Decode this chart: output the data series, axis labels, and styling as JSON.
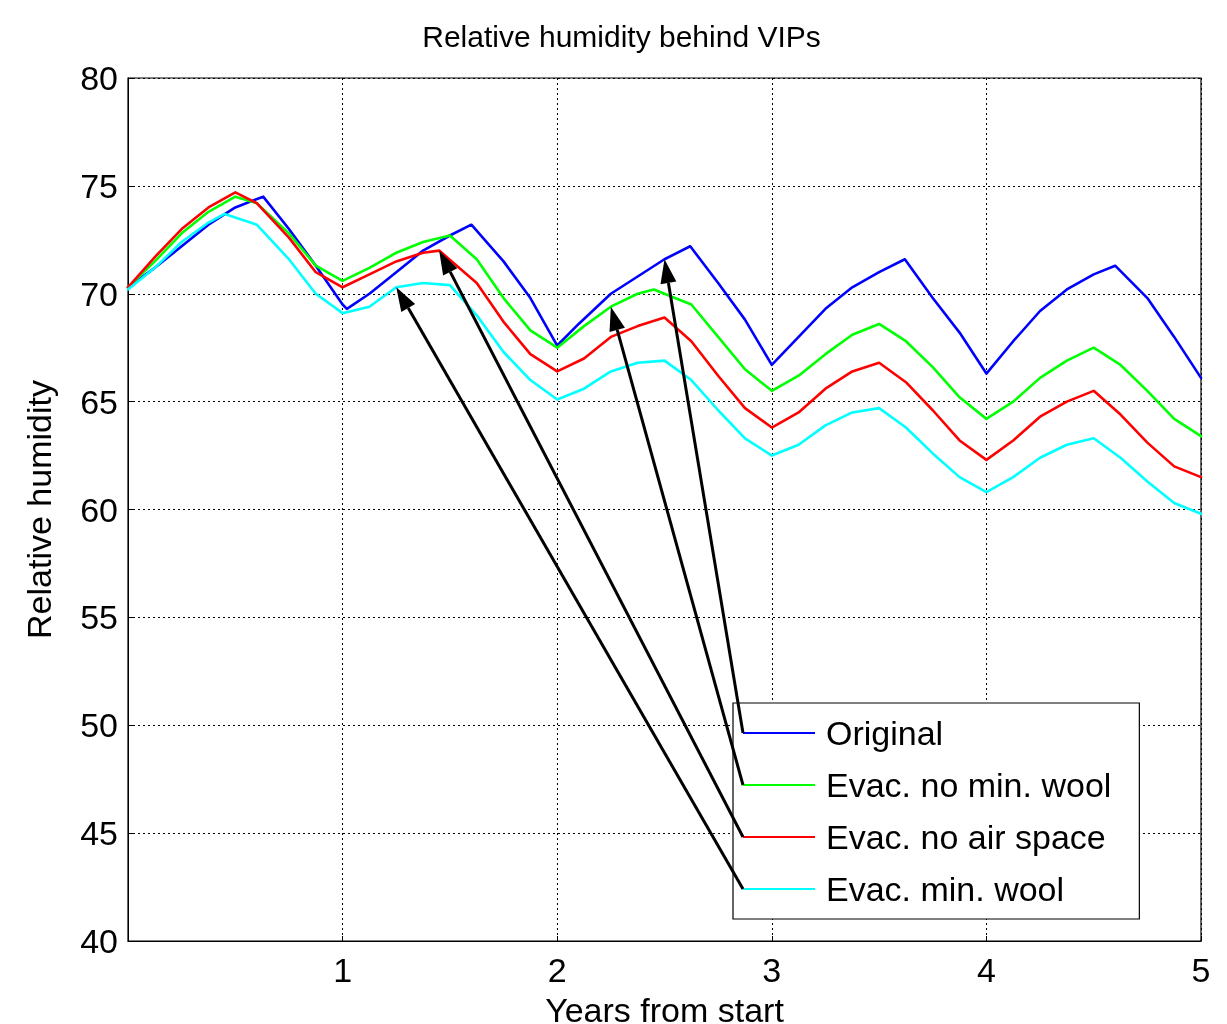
{
  "chart_data": {
    "type": "line",
    "title": "Relative humidity behind VIPs",
    "xlabel": "Years from start",
    "ylabel": "Relative humidity",
    "xlim": [
      0,
      5
    ],
    "xticks": [
      1,
      2,
      3,
      4,
      5
    ],
    "ylim": [
      40,
      80
    ],
    "yticks": [
      40,
      45,
      50,
      55,
      60,
      65,
      70,
      75,
      80
    ],
    "grid": true,
    "legend": "bottom right",
    "marker": "none",
    "line_style": "solid",
    "series": [
      {
        "name": "Original",
        "color": "#0000ff",
        "x": [
          0,
          0.125,
          0.25,
          0.375,
          0.5,
          0.63,
          0.75,
          0.875,
          1.0,
          1.02,
          1.125,
          1.25,
          1.375,
          1.5,
          1.6,
          1.75,
          1.875,
          2.0,
          2.1,
          2.25,
          2.375,
          2.5,
          2.62,
          2.75,
          2.875,
          3.0,
          3.125,
          3.25,
          3.375,
          3.5,
          3.62,
          3.75,
          3.875,
          4.0,
          4.125,
          4.25,
          4.375,
          4.5,
          4.6,
          4.75,
          4.875,
          5.0
        ],
        "values": [
          70.3,
          71.2,
          72.2,
          73.2,
          74.0,
          74.5,
          73.0,
          71.3,
          69.5,
          69.3,
          70.0,
          71.0,
          72.0,
          72.7,
          73.2,
          71.5,
          69.8,
          67.6,
          68.6,
          70.0,
          70.8,
          71.6,
          72.2,
          70.5,
          68.8,
          66.7,
          68.0,
          69.3,
          70.3,
          71.0,
          71.6,
          69.8,
          68.2,
          66.3,
          67.8,
          69.2,
          70.2,
          70.9,
          71.3,
          69.8,
          68.0,
          66.1
        ]
      },
      {
        "name": "Evac. no min. wool",
        "color": "#00ff00",
        "x": [
          0,
          0.125,
          0.25,
          0.375,
          0.5,
          0.6,
          0.75,
          0.875,
          1.0,
          1.125,
          1.25,
          1.375,
          1.5,
          1.625,
          1.75,
          1.875,
          2.0,
          2.125,
          2.25,
          2.375,
          2.45,
          2.625,
          2.75,
          2.875,
          3.0,
          3.125,
          3.25,
          3.375,
          3.5,
          3.625,
          3.75,
          3.875,
          4.0,
          4.125,
          4.25,
          4.375,
          4.5,
          4.625,
          4.75,
          4.875,
          5.0
        ],
        "values": [
          70.3,
          71.5,
          72.8,
          73.8,
          74.5,
          74.2,
          72.8,
          71.3,
          70.6,
          71.2,
          71.9,
          72.4,
          72.7,
          71.6,
          69.8,
          68.3,
          67.5,
          68.5,
          69.4,
          70.0,
          70.2,
          69.5,
          68.0,
          66.5,
          65.5,
          66.2,
          67.2,
          68.1,
          68.6,
          67.8,
          66.6,
          65.2,
          64.2,
          65.0,
          66.1,
          66.9,
          67.5,
          66.7,
          65.5,
          64.2,
          63.4
        ]
      },
      {
        "name": "Evac. no air space",
        "color": "#ff0000",
        "x": [
          0,
          0.125,
          0.25,
          0.375,
          0.5,
          0.6,
          0.75,
          0.875,
          1.0,
          1.125,
          1.25,
          1.375,
          1.45,
          1.625,
          1.75,
          1.875,
          2.0,
          2.125,
          2.25,
          2.375,
          2.5,
          2.625,
          2.75,
          2.875,
          3.0,
          3.125,
          3.25,
          3.375,
          3.5,
          3.625,
          3.75,
          3.875,
          4.0,
          4.125,
          4.25,
          4.375,
          4.5,
          4.625,
          4.75,
          4.875,
          5.0
        ],
        "values": [
          70.3,
          71.7,
          73.0,
          74.0,
          74.7,
          74.2,
          72.6,
          71.0,
          70.3,
          70.9,
          71.5,
          71.9,
          72.0,
          70.5,
          68.7,
          67.2,
          66.4,
          67.0,
          68.0,
          68.5,
          68.9,
          67.8,
          66.2,
          64.7,
          63.8,
          64.5,
          65.6,
          66.4,
          66.8,
          65.9,
          64.6,
          63.2,
          62.3,
          63.2,
          64.3,
          65.0,
          65.5,
          64.4,
          63.1,
          62.0,
          61.5
        ]
      },
      {
        "name": "Evac. min. wool",
        "color": "#00ffff",
        "x": [
          0,
          0.125,
          0.25,
          0.375,
          0.45,
          0.6,
          0.75,
          0.875,
          1.0,
          1.125,
          1.25,
          1.375,
          1.5,
          1.625,
          1.75,
          1.875,
          2.0,
          2.125,
          2.25,
          2.375,
          2.5,
          2.625,
          2.75,
          2.875,
          3.0,
          3.125,
          3.25,
          3.375,
          3.5,
          3.625,
          3.75,
          3.875,
          4.0,
          4.125,
          4.25,
          4.375,
          4.5,
          4.625,
          4.75,
          4.875,
          5.0
        ],
        "values": [
          70.2,
          71.2,
          72.4,
          73.3,
          73.7,
          73.2,
          71.6,
          70.0,
          69.1,
          69.4,
          70.3,
          70.5,
          70.4,
          69.0,
          67.3,
          66.0,
          65.1,
          65.6,
          66.4,
          66.8,
          66.9,
          66.0,
          64.6,
          63.3,
          62.5,
          63.0,
          63.9,
          64.5,
          64.7,
          63.8,
          62.6,
          61.5,
          60.8,
          61.5,
          62.4,
          63.0,
          63.3,
          62.4,
          61.3,
          60.3,
          59.8
        ]
      }
    ]
  }
}
